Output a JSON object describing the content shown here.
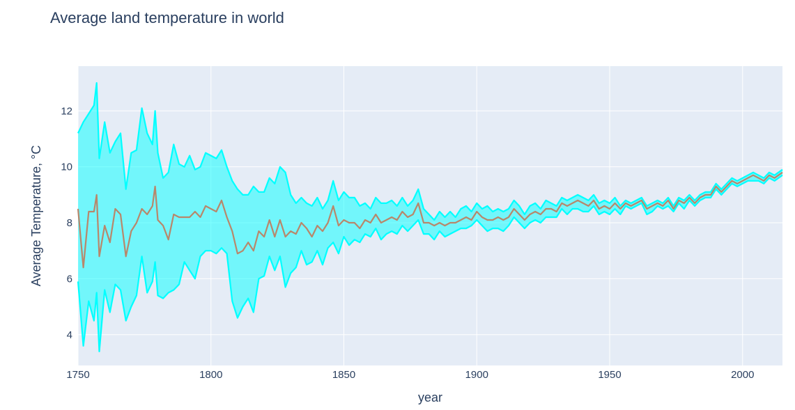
{
  "chart_data": {
    "type": "line",
    "title": "Average land temperature in world",
    "xlabel": "year",
    "ylabel": "Average Temperature, °C",
    "xlim": [
      1750,
      2015
    ],
    "ylim": [
      2.9,
      13.6
    ],
    "xticks": [
      1750,
      1800,
      1850,
      1900,
      1950,
      2000
    ],
    "yticks": [
      4,
      6,
      8,
      10,
      12
    ],
    "grid": true,
    "plot_background": "#e5ecf6",
    "colors": {
      "band": "#00ffff",
      "band_line": "#00ffff",
      "mean": "#b8876b"
    },
    "x": [
      1750,
      1752,
      1754,
      1756,
      1757,
      1758,
      1760,
      1762,
      1764,
      1766,
      1768,
      1770,
      1772,
      1774,
      1776,
      1778,
      1779,
      1780,
      1782,
      1784,
      1786,
      1788,
      1790,
      1792,
      1794,
      1796,
      1798,
      1800,
      1802,
      1804,
      1806,
      1808,
      1810,
      1812,
      1814,
      1816,
      1818,
      1820,
      1822,
      1824,
      1826,
      1828,
      1830,
      1832,
      1834,
      1836,
      1838,
      1840,
      1842,
      1844,
      1846,
      1848,
      1850,
      1852,
      1854,
      1856,
      1858,
      1860,
      1862,
      1864,
      1866,
      1868,
      1870,
      1872,
      1874,
      1876,
      1878,
      1880,
      1882,
      1884,
      1886,
      1888,
      1890,
      1892,
      1894,
      1896,
      1898,
      1900,
      1902,
      1904,
      1906,
      1908,
      1910,
      1912,
      1914,
      1916,
      1918,
      1920,
      1922,
      1924,
      1926,
      1928,
      1930,
      1932,
      1934,
      1936,
      1938,
      1940,
      1942,
      1944,
      1946,
      1948,
      1950,
      1952,
      1954,
      1956,
      1958,
      1960,
      1962,
      1964,
      1966,
      1968,
      1970,
      1972,
      1974,
      1976,
      1978,
      1980,
      1982,
      1984,
      1986,
      1988,
      1990,
      1992,
      1994,
      1996,
      1998,
      2000,
      2002,
      2004,
      2006,
      2008,
      2010,
      2012,
      2015
    ],
    "series": [
      {
        "values": [
          11.2,
          11.6,
          11.9,
          12.2,
          13.0,
          10.3,
          11.6,
          10.5,
          10.9,
          11.2,
          9.2,
          10.5,
          10.6,
          12.1,
          11.2,
          10.8,
          12.0,
          10.5,
          9.6,
          9.8,
          10.8,
          10.1,
          10.0,
          10.4,
          9.9,
          10.0,
          10.5,
          10.4,
          10.3,
          10.6,
          10.0,
          9.5,
          9.2,
          9.0,
          9.0,
          9.3,
          9.1,
          9.1,
          9.6,
          9.4,
          10.0,
          9.8,
          9.0,
          8.7,
          8.9,
          8.7,
          8.6,
          8.9,
          8.5,
          8.8,
          9.5,
          8.8,
          9.1,
          8.9,
          8.9,
          8.6,
          8.7,
          8.5,
          8.9,
          8.7,
          8.7,
          8.8,
          8.6,
          8.9,
          8.6,
          8.8,
          9.2,
          8.5,
          8.3,
          8.1,
          8.4,
          8.2,
          8.4,
          8.2,
          8.5,
          8.6,
          8.4,
          8.7,
          8.5,
          8.6,
          8.4,
          8.5,
          8.4,
          8.5,
          8.8,
          8.6,
          8.3,
          8.6,
          8.7,
          8.5,
          8.8,
          8.7,
          8.6,
          8.9,
          8.8,
          8.9,
          9.0,
          8.9,
          8.8,
          9.0,
          8.7,
          8.8,
          8.7,
          8.9,
          8.6,
          8.8,
          8.7,
          8.8,
          8.9,
          8.6,
          8.7,
          8.8,
          8.7,
          8.9,
          8.6,
          8.9,
          8.8,
          9.0,
          8.8,
          9.0,
          9.1,
          9.1,
          9.4,
          9.2,
          9.4,
          9.6,
          9.5,
          9.6,
          9.7,
          9.8,
          9.7,
          9.6,
          9.8,
          9.7,
          9.9
        ]
      },
      {
        "values": [
          5.9,
          3.6,
          5.2,
          4.5,
          5.5,
          3.4,
          5.6,
          4.8,
          5.8,
          5.6,
          4.5,
          5.0,
          5.4,
          6.8,
          5.5,
          5.9,
          6.6,
          5.4,
          5.3,
          5.5,
          5.6,
          5.8,
          6.6,
          6.3,
          6.0,
          6.8,
          7.0,
          7.0,
          6.9,
          7.1,
          6.9,
          5.2,
          4.6,
          5.0,
          5.3,
          4.8,
          6.0,
          6.1,
          6.8,
          6.3,
          6.8,
          5.7,
          6.2,
          6.4,
          7.0,
          6.5,
          6.6,
          7.0,
          6.5,
          7.1,
          7.3,
          6.9,
          7.5,
          7.2,
          7.4,
          7.3,
          7.6,
          7.5,
          7.8,
          7.4,
          7.6,
          7.7,
          7.6,
          7.9,
          7.7,
          7.9,
          8.1,
          7.6,
          7.6,
          7.4,
          7.7,
          7.5,
          7.6,
          7.7,
          7.8,
          7.8,
          7.9,
          8.1,
          7.9,
          7.7,
          7.8,
          7.8,
          7.7,
          7.9,
          8.2,
          8.0,
          7.8,
          8.0,
          8.1,
          8.0,
          8.2,
          8.2,
          8.2,
          8.5,
          8.3,
          8.5,
          8.5,
          8.4,
          8.4,
          8.6,
          8.3,
          8.4,
          8.3,
          8.5,
          8.3,
          8.6,
          8.5,
          8.6,
          8.7,
          8.3,
          8.4,
          8.6,
          8.5,
          8.6,
          8.4,
          8.7,
          8.5,
          8.8,
          8.6,
          8.8,
          8.9,
          8.9,
          9.2,
          9.0,
          9.2,
          9.4,
          9.3,
          9.4,
          9.5,
          9.5,
          9.5,
          9.4,
          9.6,
          9.5,
          9.7
        ]
      },
      {
        "values": [
          8.5,
          6.4,
          8.4,
          8.4,
          9.0,
          6.8,
          7.9,
          7.3,
          8.5,
          8.3,
          6.8,
          7.7,
          8.0,
          8.5,
          8.3,
          8.6,
          9.3,
          8.1,
          7.9,
          7.4,
          8.3,
          8.2,
          8.2,
          8.2,
          8.4,
          8.2,
          8.6,
          8.5,
          8.4,
          8.8,
          8.2,
          7.7,
          6.9,
          7.0,
          7.3,
          7.0,
          7.7,
          7.5,
          8.1,
          7.5,
          8.1,
          7.5,
          7.7,
          7.6,
          8.0,
          7.8,
          7.5,
          7.9,
          7.7,
          8.0,
          8.6,
          7.9,
          8.1,
          8.0,
          8.0,
          7.8,
          8.1,
          8.0,
          8.3,
          8.0,
          8.1,
          8.2,
          8.1,
          8.4,
          8.2,
          8.3,
          8.7,
          8.0,
          8.0,
          7.9,
          8.0,
          7.9,
          8.0,
          8.0,
          8.1,
          8.2,
          8.1,
          8.4,
          8.2,
          8.1,
          8.1,
          8.2,
          8.1,
          8.2,
          8.5,
          8.3,
          8.1,
          8.3,
          8.4,
          8.3,
          8.5,
          8.5,
          8.4,
          8.7,
          8.6,
          8.7,
          8.8,
          8.7,
          8.6,
          8.8,
          8.5,
          8.6,
          8.5,
          8.7,
          8.5,
          8.7,
          8.6,
          8.7,
          8.8,
          8.5,
          8.6,
          8.7,
          8.6,
          8.8,
          8.5,
          8.8,
          8.7,
          8.9,
          8.7,
          8.9,
          9.0,
          9.0,
          9.3,
          9.1,
          9.3,
          9.5,
          9.4,
          9.5,
          9.6,
          9.7,
          9.6,
          9.5,
          9.7,
          9.6,
          9.8
        ]
      }
    ]
  }
}
